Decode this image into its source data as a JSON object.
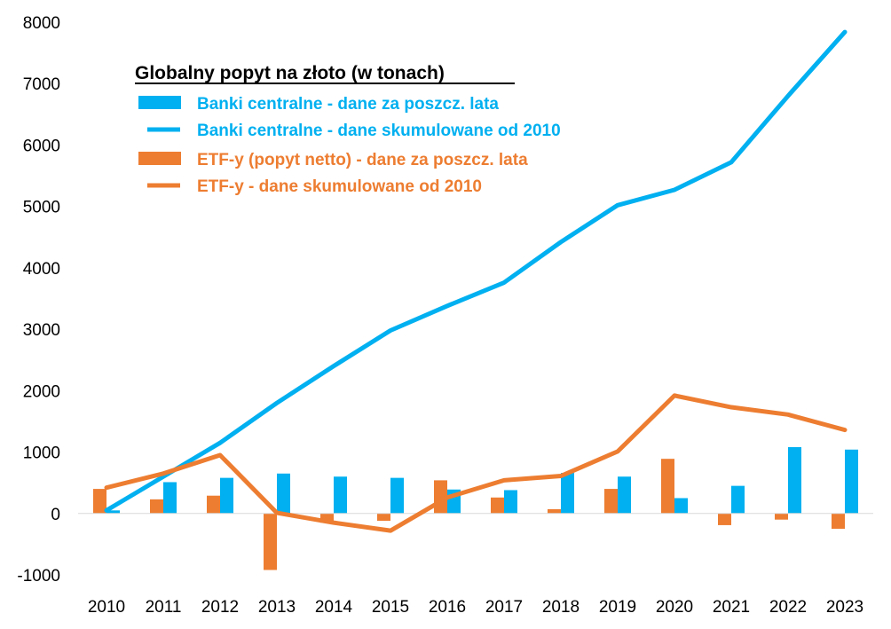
{
  "colors": {
    "blue": "#00b0f0",
    "orange": "#ed7d31"
  },
  "chart_data": {
    "type": "bar",
    "title": "Globalny popyt na złoto (w tonach)",
    "xlabel": "",
    "ylabel": "",
    "ylim": [
      -1000,
      8000
    ],
    "yticks": [
      -1000,
      0,
      1000,
      2000,
      3000,
      4000,
      5000,
      6000,
      7000,
      8000
    ],
    "grid": false,
    "legend_position": "top-left",
    "categories": [
      "2010",
      "2011",
      "2012",
      "2013",
      "2014",
      "2015",
      "2016",
      "2017",
      "2018",
      "2019",
      "2020",
      "2021",
      "2022",
      "2023"
    ],
    "series": [
      {
        "name": "Banki centralne - dane za poszcz. lata",
        "kind": "bar",
        "color": "#00b0f0",
        "values": [
          50,
          510,
          580,
          650,
          600,
          580,
          390,
          380,
          660,
          600,
          250,
          450,
          1080,
          1040
        ]
      },
      {
        "name": "Banki centralne - dane skumulowane od 2010",
        "kind": "line",
        "color": "#00b0f0",
        "values": [
          50,
          600,
          1150,
          1800,
          2400,
          2980,
          3380,
          3760,
          4420,
          5020,
          5270,
          5720,
          6800,
          7840
        ]
      },
      {
        "name": "ETF-y (popyt netto) - dane za poszcz. lata",
        "kind": "bar",
        "color": "#ed7d31",
        "values": [
          400,
          230,
          290,
          -920,
          -150,
          -120,
          540,
          260,
          70,
          400,
          890,
          -190,
          -100,
          -250
        ]
      },
      {
        "name": "ETF-y - dane skumulowane od 2010",
        "kind": "line",
        "color": "#ed7d31",
        "values": [
          420,
          650,
          950,
          10,
          -150,
          -280,
          260,
          540,
          610,
          1010,
          1920,
          1730,
          1610,
          1360
        ]
      }
    ]
  }
}
